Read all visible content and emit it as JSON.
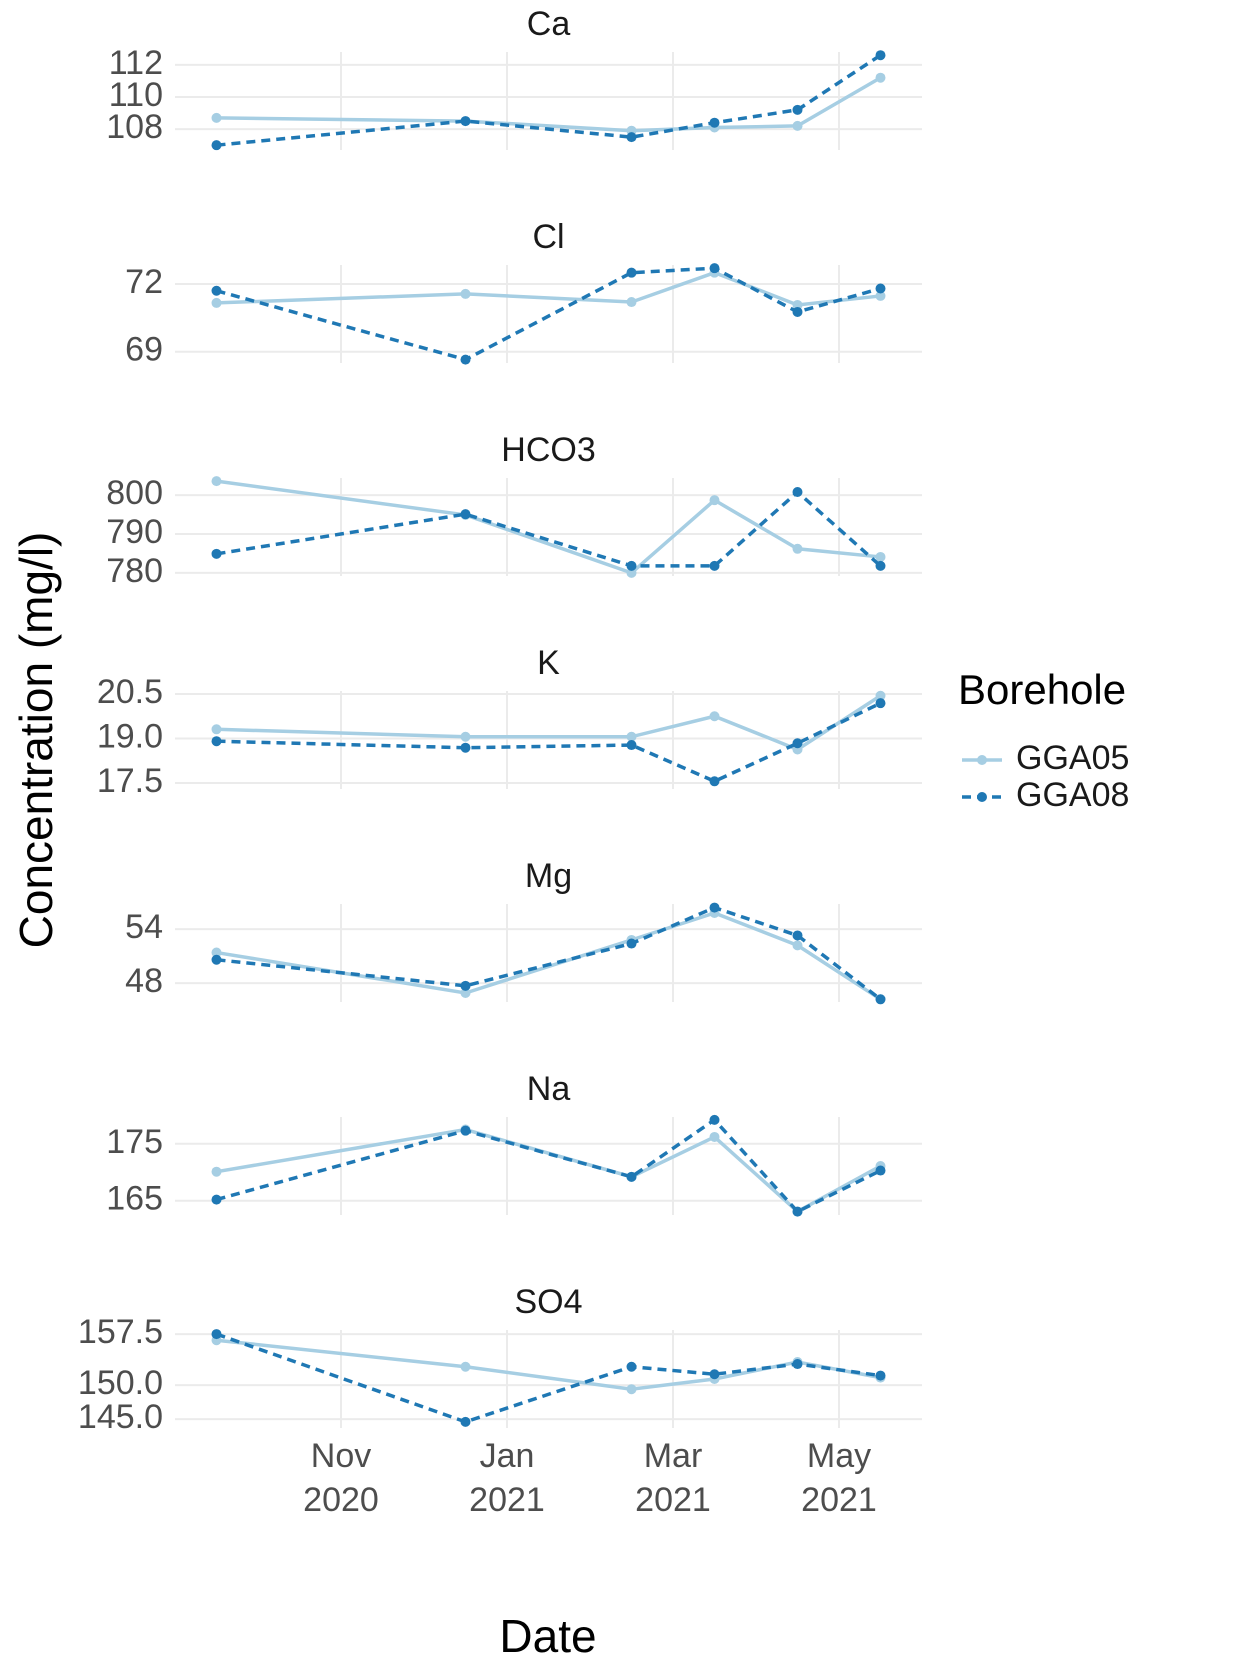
{
  "chart_data": [
    {
      "type": "line",
      "title": "Ca",
      "x": [
        "2020-09",
        "2020-12",
        "2021-02",
        "2021-03",
        "2021-04",
        "2021-05"
      ],
      "series": [
        {
          "name": "GGA05",
          "color": "#a6cee3",
          "dash": false,
          "values": [
            108.7,
            108.5,
            107.9,
            108.1,
            108.2,
            111.2
          ]
        },
        {
          "name": "GGA08",
          "color": "#1f78b4",
          "dash": true,
          "values": [
            107.0,
            108.5,
            107.5,
            108.4,
            109.2,
            112.6
          ]
        }
      ],
      "ylim": [
        106.7,
        112.8
      ],
      "yticks": [
        108,
        110,
        112
      ],
      "grid": true
    },
    {
      "type": "line",
      "title": "Cl",
      "x": [
        "2020-09",
        "2020-12",
        "2021-02",
        "2021-03",
        "2021-04",
        "2021-05"
      ],
      "series": [
        {
          "name": "GGA05",
          "color": "#a6cee3",
          "dash": false,
          "values": [
            71.16,
            71.56,
            71.2,
            72.5,
            71.07,
            71.47
          ]
        },
        {
          "name": "GGA08",
          "color": "#1f78b4",
          "dash": true,
          "values": [
            71.7,
            68.65,
            72.5,
            72.7,
            70.76,
            71.8
          ]
        }
      ],
      "ylim": [
        68.5,
        72.84
      ],
      "yticks": [
        69,
        72
      ],
      "grid": true
    },
    {
      "type": "line",
      "title": "HCO3",
      "x": [
        "2020-09",
        "2020-12",
        "2021-02",
        "2021-03",
        "2021-04",
        "2021-05"
      ],
      "series": [
        {
          "name": "GGA05",
          "color": "#a6cee3",
          "dash": false,
          "values": [
            803.6,
            794.9,
            780,
            798.7,
            786.2,
            784.1
          ]
        },
        {
          "name": "GGA08",
          "color": "#1f78b4",
          "dash": true,
          "values": [
            784.9,
            795.1,
            781.8,
            781.8,
            800.8,
            781.8
          ]
        }
      ],
      "ylim": [
        779.2,
        804.4
      ],
      "yticks": [
        780,
        790,
        800
      ],
      "grid": true
    },
    {
      "type": "line",
      "title": "K",
      "x": [
        "2020-09",
        "2020-12",
        "2021-02",
        "2021-03",
        "2021-04",
        "2021-05"
      ],
      "series": [
        {
          "name": "GGA05",
          "color": "#a6cee3",
          "dash": false,
          "values": [
            19.31,
            19.06,
            19.06,
            19.75,
            18.63,
            20.44
          ]
        },
        {
          "name": "GGA08",
          "color": "#1f78b4",
          "dash": true,
          "values": [
            18.91,
            18.69,
            18.78,
            17.56,
            18.84,
            20.19
          ]
        }
      ],
      "ylim": [
        17.3,
        20.6
      ],
      "yticks": [
        17.5,
        {
          "value": 19,
          "label": "19.0"
        },
        20.5
      ],
      "grid": true
    },
    {
      "type": "line",
      "title": "Mg",
      "x": [
        "2020-09",
        "2020-12",
        "2021-02",
        "2021-03",
        "2021-04",
        "2021-05"
      ],
      "series": [
        {
          "name": "GGA05",
          "color": "#a6cee3",
          "dash": false,
          "values": [
            51.4,
            46.9,
            52.8,
            55.8,
            52.2,
            46.2
          ]
        },
        {
          "name": "GGA08",
          "color": "#1f78b4",
          "dash": true,
          "values": [
            50.6,
            47.7,
            52.4,
            56.4,
            53.3,
            46.2
          ]
        }
      ],
      "ylim": [
        45.9,
        56.8
      ],
      "yticks": [
        48,
        54
      ],
      "grid": true
    },
    {
      "type": "line",
      "title": "Na",
      "x": [
        "2020-09",
        "2020-12",
        "2021-02",
        "2021-03",
        "2021-04",
        "2021-05"
      ],
      "series": [
        {
          "name": "GGA05",
          "color": "#a6cee3",
          "dash": false,
          "values": [
            170.1,
            177.5,
            169.2,
            176.2,
            163.1,
            171.1
          ]
        },
        {
          "name": "GGA08",
          "color": "#1f78b4",
          "dash": true,
          "values": [
            165.2,
            177.3,
            169.2,
            179.2,
            163.1,
            170.3
          ]
        }
      ],
      "ylim": [
        162.5,
        179.7
      ],
      "yticks": [
        165,
        175
      ],
      "grid": true
    },
    {
      "type": "line",
      "title": "SO4",
      "x": [
        "2020-09",
        "2020-12",
        "2021-02",
        "2021-03",
        "2021-04",
        "2021-05"
      ],
      "series": [
        {
          "name": "GGA05",
          "color": "#a6cee3",
          "dash": false,
          "values": [
            156.6,
            152.7,
            149.4,
            150.9,
            153.4,
            151.1
          ]
        },
        {
          "name": "GGA08",
          "color": "#1f78b4",
          "dash": true,
          "values": [
            157.5,
            144.6,
            152.7,
            151.6,
            153.1,
            151.4
          ]
        }
      ],
      "ylim": [
        143.7,
        158.1
      ],
      "yticks": [
        {
          "value": 145,
          "label": "145.0"
        },
        {
          "value": 150,
          "label": "150.0"
        },
        157.5
      ],
      "grid": true
    }
  ],
  "x_axis": {
    "label": "Date",
    "xlim": [
      "2020-09",
      "2021-06"
    ],
    "xticks": [
      {
        "value": "2020-11",
        "label": "Nov 2020"
      },
      {
        "value": "2021-01",
        "label": "Jan 2021"
      },
      {
        "value": "2021-03",
        "label": "Mar 2021"
      },
      {
        "value": "2021-05",
        "label": "May 2021"
      }
    ]
  },
  "y_label": "Concentration (mg/l)",
  "legend_title": "Borehole"
}
